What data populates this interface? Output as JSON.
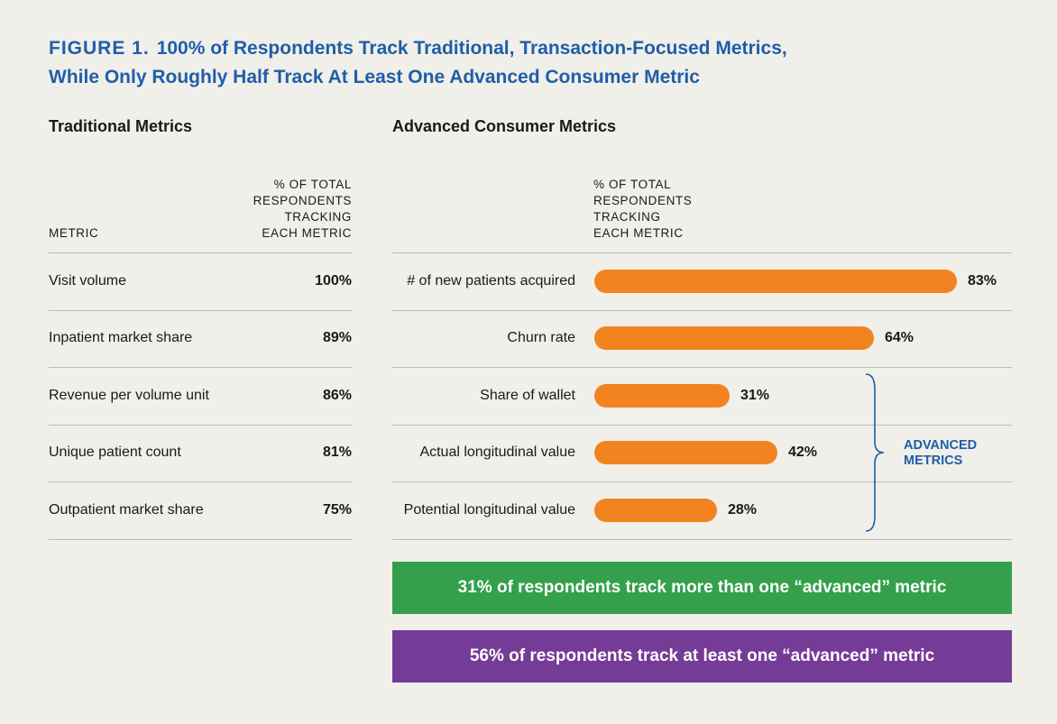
{
  "title": {
    "figure_label": "FIGURE 1.",
    "line1": "100% of Respondents Track Traditional, Transaction-Focused Metrics,",
    "line2": "While Only Roughly Half Track At Least One Advanced Consumer Metric"
  },
  "traditional": {
    "heading": "Traditional Metrics",
    "col_metric": "METRIC",
    "col_pct": [
      "% OF TOTAL",
      "RESPONDENTS",
      "TRACKING",
      "EACH METRIC"
    ],
    "rows": [
      {
        "label": "Visit volume",
        "value": "100%"
      },
      {
        "label": "Inpatient market share",
        "value": "89%"
      },
      {
        "label": "Revenue per volume unit",
        "value": "86%"
      },
      {
        "label": "Unique patient count",
        "value": "81%"
      },
      {
        "label": "Outpatient market share",
        "value": "75%"
      }
    ]
  },
  "advanced": {
    "heading": "Advanced Consumer Metrics",
    "col_pct": [
      "% OF TOTAL",
      "RESPONDENTS",
      "TRACKING",
      "EACH METRIC"
    ],
    "bracket_label": [
      "ADVANCED",
      "METRICS"
    ],
    "bar_color": "#f28321"
  },
  "chart_data": {
    "type": "bar",
    "orientation": "horizontal",
    "categories": [
      "# of new patients acquired",
      "Churn rate",
      "Share of wallet",
      "Actual longitudinal value",
      "Potential longitudinal value"
    ],
    "values": [
      83,
      64,
      31,
      42,
      28
    ],
    "value_labels": [
      "83%",
      "64%",
      "31%",
      "42%",
      "28%"
    ],
    "xlim": [
      0,
      100
    ],
    "grid": false
  },
  "banners": {
    "green": {
      "text": "31% of respondents track more than one “advanced” metric",
      "color": "#34a04b"
    },
    "purple": {
      "text": "56% of respondents track at least one “advanced” metric",
      "color": "#743c97"
    }
  }
}
